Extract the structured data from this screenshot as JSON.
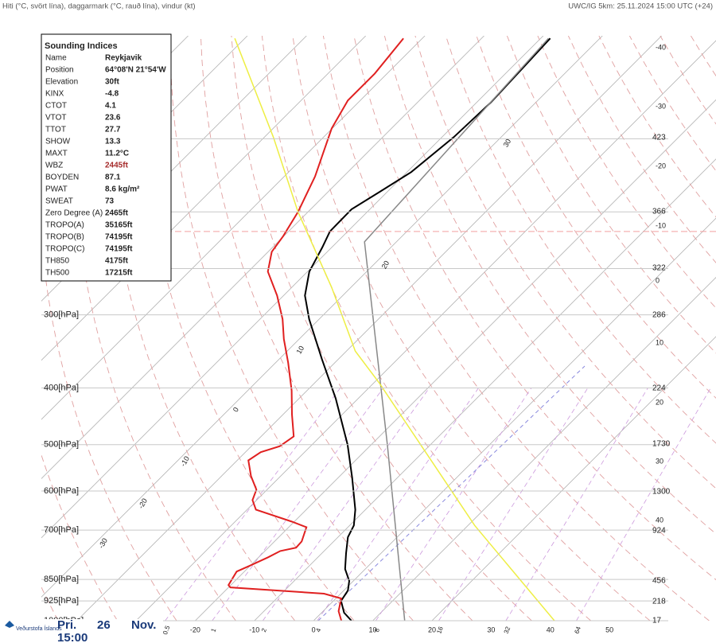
{
  "header": {
    "left": "Hiti (°C, svört lína), daggarmark (°C, rauð lína), vindur (kt)",
    "right": "UWC/IG 5km: 25.11.2024 15:00 UTC (+24)"
  },
  "indices": {
    "title": "Sounding Indices",
    "rows": [
      {
        "name": "Name",
        "value": "Reykjavik"
      },
      {
        "name": "Position",
        "value": "64°08'N 21°54'W"
      },
      {
        "name": "Elevation",
        "value": "30ft"
      },
      {
        "name": "KINX",
        "value": "-4.8"
      },
      {
        "name": "CTOT",
        "value": "4.1"
      },
      {
        "name": "VTOT",
        "value": "23.6"
      },
      {
        "name": "TTOT",
        "value": "27.7"
      },
      {
        "name": "SHOW",
        "value": "13.3"
      },
      {
        "name": "MAXT",
        "value": "11.2°C"
      },
      {
        "name": "WBZ",
        "value": "2445ft",
        "color": "#a52a2a"
      },
      {
        "name": "BOYDEN",
        "value": "87.1"
      },
      {
        "name": "PWAT",
        "value": "8.6 kg/m²"
      },
      {
        "name": "SWEAT",
        "value": "73"
      },
      {
        "name": "Zero Degree (A)",
        "value": "2465ft"
      },
      {
        "name": "TROPO(A)",
        "value": "35165ft"
      },
      {
        "name": "TROPO(B)",
        "value": "74195ft"
      },
      {
        "name": "TROPO(C)",
        "value": "74195ft"
      },
      {
        "name": "TH850",
        "value": "4175ft"
      },
      {
        "name": "TH500",
        "value": "17215ft"
      }
    ]
  },
  "footer": {
    "org": "Veðurstofa Íslands",
    "day": "Pri.",
    "date": "26",
    "month": "Nov.",
    "time": "15:00"
  },
  "chart_data": {
    "type": "skewt",
    "ylim": [
      1000,
      100
    ],
    "log_y": true,
    "yticks": [
      {
        "value": 1000,
        "label": "1000[hPa]"
      },
      {
        "value": 925,
        "label": "925[hPa]"
      },
      {
        "value": 850,
        "label": "850[hPa]"
      },
      {
        "value": 700,
        "label": "700[hPa]"
      },
      {
        "value": 600,
        "label": "600[hPa]"
      },
      {
        "value": 500,
        "label": "500[hPa]"
      },
      {
        "value": 400,
        "label": "400[hPa]"
      },
      {
        "value": 300,
        "label": "300[hPa]"
      }
    ],
    "ygrid": [
      250,
      200,
      150
    ],
    "xlim": [
      -46,
      68
    ],
    "xticks": [
      -20,
      -10,
      0,
      10,
      20,
      30,
      40,
      50
    ],
    "mixing_ratio_labels": [
      0.5,
      1,
      2,
      4,
      8,
      16,
      32,
      64
    ],
    "adiabat_labels": [
      30,
      20,
      10,
      0,
      -10,
      -20,
      -30
    ],
    "right_temps": [
      -40,
      -30,
      -20,
      -10,
      0,
      10,
      20,
      30,
      40
    ],
    "right_heights": [
      423,
      366,
      322,
      286,
      224,
      1730,
      1300,
      924,
      456,
      218,
      17
    ],
    "tropopause": 216,
    "tropopause_color": "#f2a0a0",
    "series": [
      {
        "color": "#000000",
        "pressure": [
          1000,
          969,
          925,
          888,
          855,
          816,
          767,
          720,
          687,
          646,
          570,
          500,
          417,
          357,
          305,
          278,
          253,
          230,
          216,
          198,
          185,
          171,
          149,
          130,
          114,
          101
        ],
        "values": [
          6.4,
          3.8,
          1.3,
          0.7,
          -0.7,
          -3.4,
          -5.9,
          -8.3,
          -9.3,
          -11.7,
          -17.6,
          -24.0,
          -33.8,
          -42.8,
          -51.7,
          -56.4,
          -59.7,
          -61.6,
          -63.0,
          -63.1,
          -61.3,
          -59.3,
          -58.0,
          -57.6,
          -58.0,
          -58.4
        ]
      },
      {
        "color": "#e02020",
        "pressure": [
          1000,
          963,
          916,
          899,
          877,
          869,
          824,
          804,
          779,
          760,
          750,
          732,
          692,
          677,
          646,
          622,
          597,
          566,
          532,
          515,
          503,
          484,
          444,
          404,
          362,
          330,
          305,
          278,
          253,
          234,
          220,
          200,
          174,
          144,
          129,
          116,
          101
        ],
        "values": [
          4.7,
          2.6,
          0.9,
          -2.8,
          -19.7,
          -20.4,
          -21.3,
          -20.0,
          -18.4,
          -17.4,
          -15.3,
          -15.4,
          -17.0,
          -20.4,
          -28.5,
          -30.7,
          -31.8,
          -35.0,
          -38.1,
          -37.4,
          -35.2,
          -34.5,
          -38.5,
          -42.6,
          -47.9,
          -52.6,
          -56.2,
          -61.1,
          -66.7,
          -69.4,
          -70.1,
          -71.7,
          -74.8,
          -80.1,
          -82.1,
          -82.1,
          -83.2
        ]
      },
      {
        "color": "#888888",
        "pressure": [
          1000,
          503,
          225,
          101
        ],
        "values": [
          15.4,
          -17.0,
          -55.4,
          -58.7
        ]
      },
      {
        "color": "#eeee44",
        "pressure": [
          1000,
          687,
          519,
          392,
          346,
          269,
          200,
          149,
          101
        ],
        "values": [
          40.7,
          11.1,
          -9.0,
          -29.1,
          -38.5,
          -53.3,
          -71.7,
          -88.5,
          -111.7
        ]
      }
    ]
  }
}
